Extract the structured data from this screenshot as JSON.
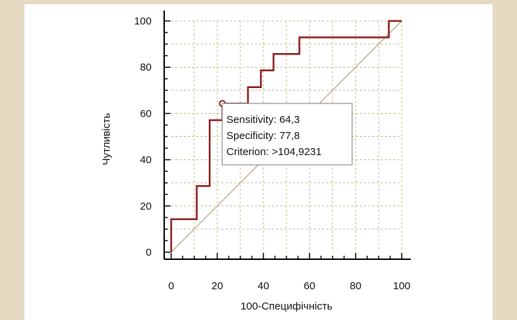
{
  "chart_data": {
    "type": "line",
    "xlabel": "100-Специфічність",
    "ylabel": "Чутливість",
    "xlim": [
      0,
      100
    ],
    "ylim": [
      0,
      100
    ],
    "xticks": [
      0,
      20,
      40,
      60,
      80,
      100
    ],
    "yticks": [
      0,
      20,
      40,
      60,
      80,
      100
    ],
    "grid": true,
    "series": [
      {
        "type": "step",
        "color": "#8b1a1a",
        "x": [
          0,
          0,
          11.1,
          11.1,
          16.7,
          16.7,
          22.2,
          22.2,
          33.3,
          33.3,
          38.9,
          38.9,
          44.4,
          44.4,
          55.6,
          55.6,
          94.4,
          94.4,
          100
        ],
        "y": [
          0,
          14.3,
          14.3,
          28.6,
          28.6,
          57.1,
          57.1,
          64.3,
          64.3,
          71.4,
          71.4,
          78.6,
          78.6,
          85.7,
          85.7,
          92.9,
          92.9,
          100,
          100
        ]
      },
      {
        "type": "reference",
        "color": "#b8a484",
        "x": [
          0,
          100
        ],
        "y": [
          0,
          100
        ]
      }
    ],
    "marker": {
      "x": 22.2,
      "y": 64.3
    },
    "tooltip": {
      "sensitivity": "Sensitivity: 64,3",
      "specificity": "Specificity: 77,8",
      "criterion": "Criterion: >104,9231"
    }
  }
}
